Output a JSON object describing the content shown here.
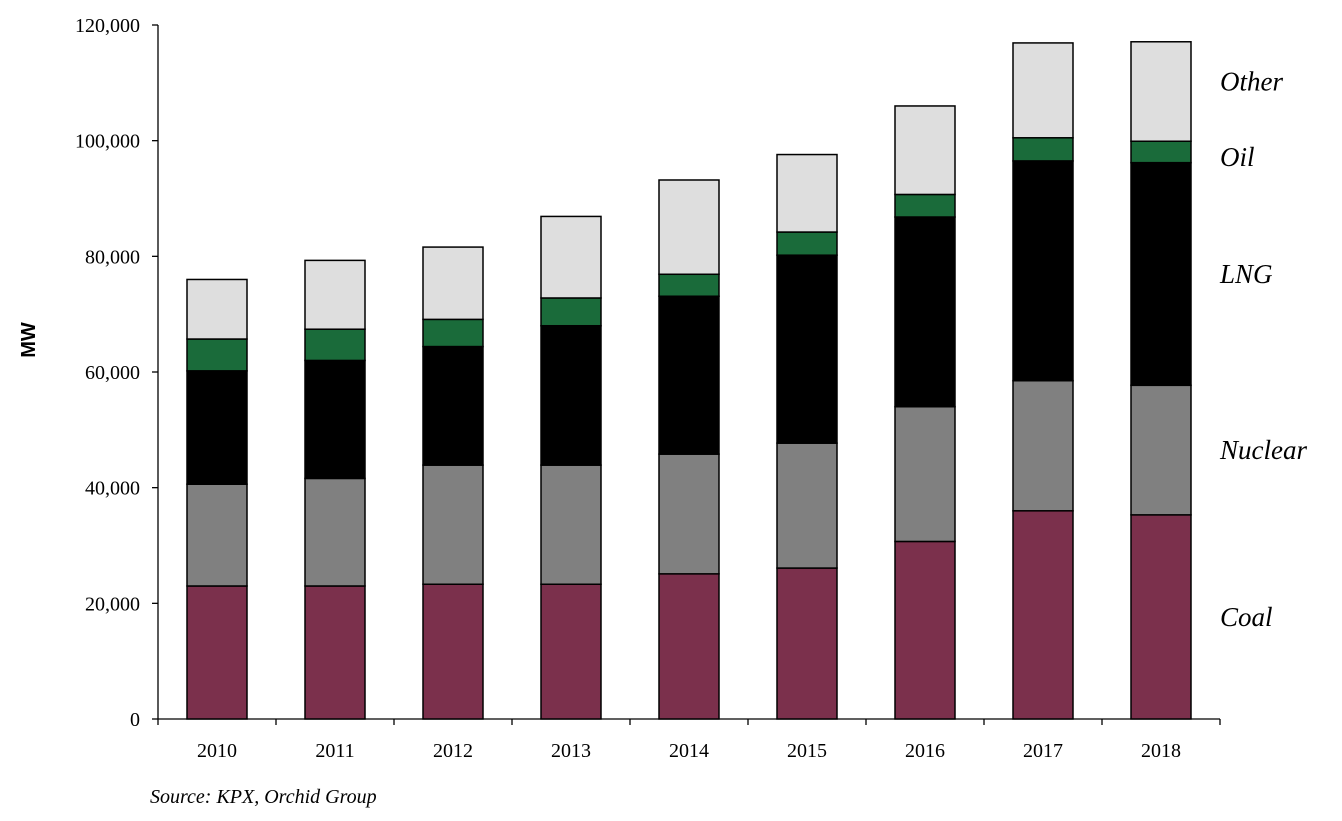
{
  "chart_data": {
    "type": "bar",
    "stacked": true,
    "categories": [
      "2010",
      "2011",
      "2012",
      "2013",
      "2014",
      "2015",
      "2016",
      "2017",
      "2018"
    ],
    "series": [
      {
        "name": "Coal",
        "color": "#7b304c",
        "values": [
          23000,
          23000,
          23300,
          23300,
          25100,
          26100,
          30700,
          36000,
          35300
        ]
      },
      {
        "name": "Nuclear",
        "color": "#808080",
        "values": [
          17600,
          18600,
          20600,
          20600,
          20700,
          21600,
          23300,
          22500,
          22400
        ]
      },
      {
        "name": "LNG",
        "color": "#000000",
        "values": [
          19600,
          20400,
          20500,
          24100,
          27300,
          32500,
          32800,
          38000,
          38500
        ]
      },
      {
        "name": "Oil",
        "color": "#1a6b3a",
        "values": [
          5500,
          5400,
          4700,
          4800,
          3800,
          4000,
          3900,
          4000,
          3700
        ]
      },
      {
        "name": "Other",
        "color": "#dedede",
        "values": [
          10300,
          11900,
          12500,
          14100,
          16300,
          13400,
          15300,
          16400,
          17200
        ]
      }
    ],
    "title": "",
    "xlabel": "",
    "ylabel": "MW",
    "ylim": [
      0,
      120000
    ],
    "yticks": [
      "0",
      "20,000",
      "40,000",
      "60,000",
      "80,000",
      "100,000",
      "120,000"
    ],
    "grid": false,
    "legend": "series names printed at right of the last bar",
    "source": "Source: KPX, Orchid Group"
  }
}
